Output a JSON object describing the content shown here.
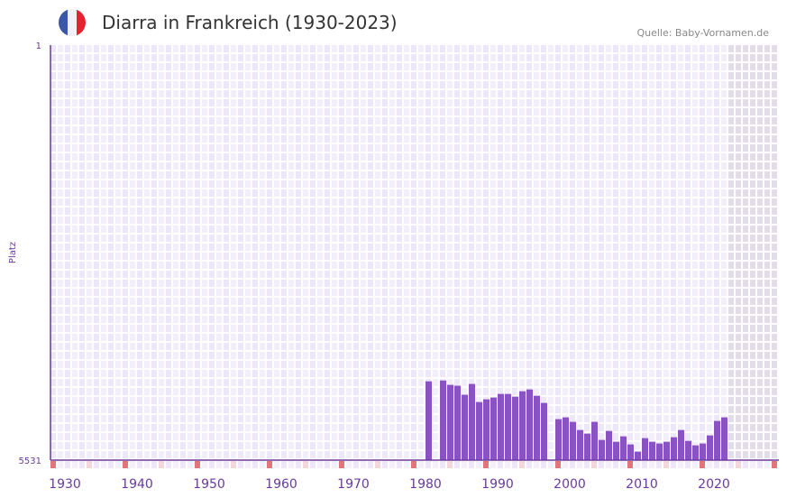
{
  "header": {
    "title": "Diarra in Frankreich (1930-2023)",
    "source": "Quelle: Baby-Vornamen.de",
    "flag_colors": [
      "#3a57a8",
      "#f1f2f4",
      "#e32332"
    ]
  },
  "colors": {
    "bar": "#8b52c6",
    "axis": "#6a3a9a",
    "grid_bg": "#ede7f7",
    "future_bg": "#e2dde9",
    "marker": "#e5737b",
    "marker_light": "#f4d6dc"
  },
  "chart_data": {
    "type": "bar",
    "title": "Diarra in Frankreich (1930-2023)",
    "xlabel": "",
    "ylabel": "Platz",
    "ylim": [
      1,
      5531
    ],
    "y_inverted": true,
    "y_ticks": [
      "1",
      "5531"
    ],
    "x_ticks": [
      "1930",
      "1940",
      "1950",
      "1960",
      "1970",
      "1980",
      "1990",
      "2000",
      "2010",
      "2020"
    ],
    "xlim": [
      1928,
      2028
    ],
    "x": [
      1980,
      1982,
      1983,
      1984,
      1985,
      1986,
      1987,
      1988,
      1989,
      1990,
      1991,
      1992,
      1993,
      1994,
      1995,
      1996,
      1998,
      1999,
      2000,
      2001,
      2002,
      2003,
      2004,
      2005,
      2006,
      2007,
      2008,
      2009,
      2010,
      2011,
      2012,
      2013,
      2014,
      2015,
      2016,
      2017,
      2018,
      2019,
      2020,
      2021
    ],
    "values": [
      4481,
      4470,
      4528,
      4540,
      4660,
      4516,
      4757,
      4721,
      4697,
      4649,
      4649,
      4685,
      4613,
      4589,
      4673,
      4769,
      4985,
      4961,
      5021,
      5130,
      5178,
      5021,
      5262,
      5142,
      5286,
      5214,
      5322,
      5418,
      5238,
      5286,
      5310,
      5286,
      5226,
      5130,
      5274,
      5334,
      5310,
      5202,
      5009,
      4961
    ],
    "grid": true
  }
}
